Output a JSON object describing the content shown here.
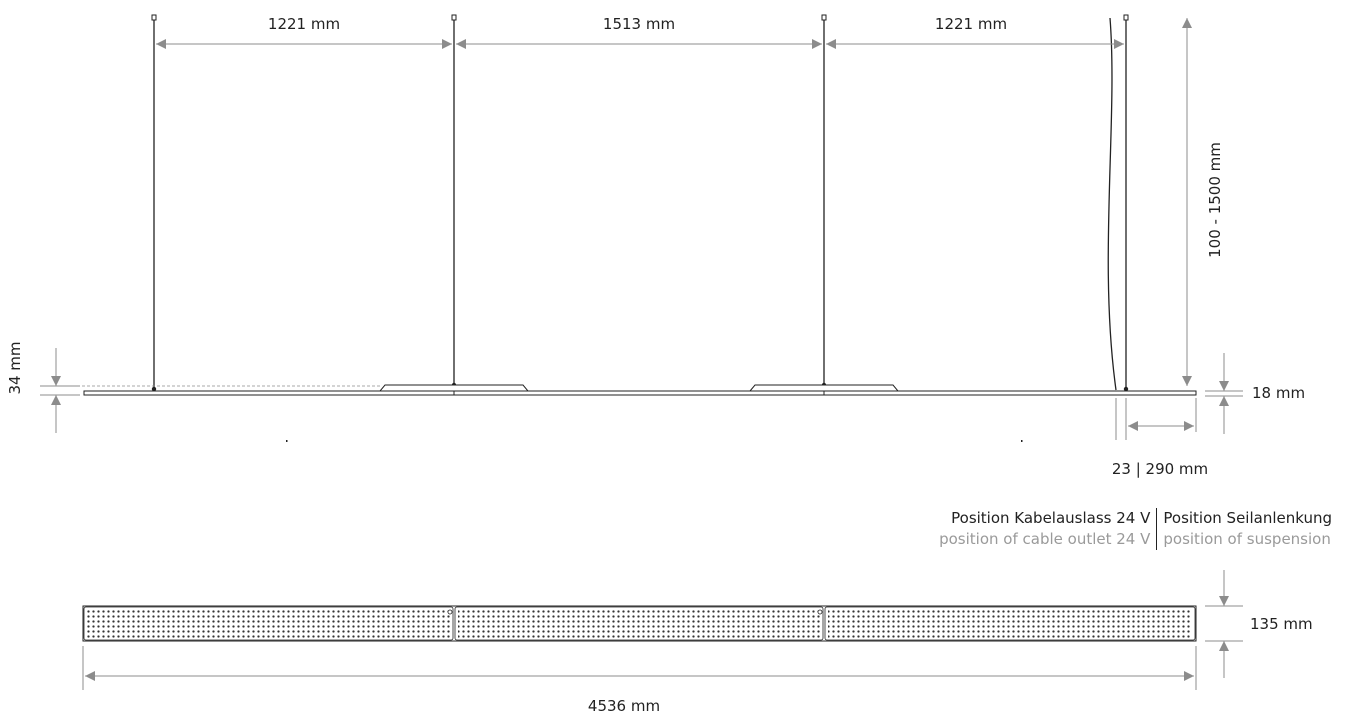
{
  "dimensions": {
    "span_1": "1221 mm",
    "span_2": "1513 mm",
    "span_3": "1221 mm",
    "suspension_length": "100 - 1500 mm",
    "overall_height": "34 mm",
    "profile_height": "18 mm",
    "end_offsets": "23 | 290 mm",
    "depth": "135 mm",
    "total_length": "4536 mm"
  },
  "legend": {
    "cable_outlet_de": "Position Kabelauslass 24 V",
    "cable_outlet_en": "position of cable outlet 24 V",
    "suspension_de": "Position Seilanlenkung",
    "suspension_en": "position of suspension"
  },
  "colors": {
    "line": "#222222",
    "dimension": "#8c8c8c",
    "dot": "#333333"
  }
}
